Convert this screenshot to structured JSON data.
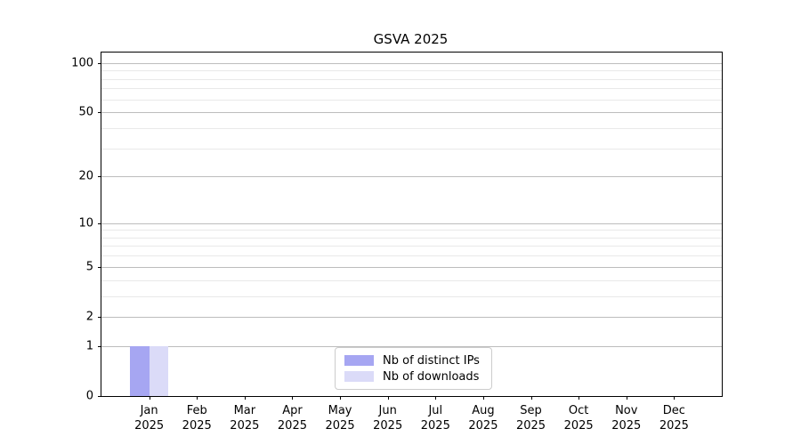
{
  "chart_data": {
    "type": "bar",
    "title": "GSVA 2025",
    "categories": [
      "Jan",
      "Feb",
      "Mar",
      "Apr",
      "May",
      "Jun",
      "Jul",
      "Aug",
      "Sep",
      "Oct",
      "Nov",
      "Dec"
    ],
    "category_year": "2025",
    "series": [
      {
        "name": "Nb of distinct IPs",
        "color": "#a6a6f2",
        "values": [
          1,
          0,
          0,
          0,
          0,
          0,
          0,
          0,
          0,
          0,
          0,
          0
        ]
      },
      {
        "name": "Nb of downloads",
        "color": "#dbdbf8",
        "values": [
          1,
          0,
          0,
          0,
          0,
          0,
          0,
          0,
          0,
          0,
          0,
          0
        ]
      }
    ],
    "yscale": "log10(1+v)",
    "yticks": [
      0,
      1,
      2,
      5,
      10,
      20,
      50,
      100
    ],
    "yticks_minor": [
      3,
      4,
      6,
      7,
      8,
      9,
      30,
      40,
      60,
      70,
      80,
      90
    ],
    "ylim": [
      0,
      116
    ],
    "xlabel": "",
    "ylabel": "",
    "grid": "horizontal",
    "legend_position": "inside-bottom-center"
  },
  "colors": {
    "background": "#ffffff",
    "axis": "#000000",
    "text": "#000000",
    "grid_major": "#bdbdbd",
    "grid_minor": "#e9e9e9",
    "legend_border": "#cccccc",
    "bar_distinct_ips": "#a6a6f2",
    "bar_downloads": "#dbdbf8"
  }
}
